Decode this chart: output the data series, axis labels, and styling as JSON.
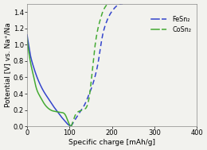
{
  "title": "",
  "xlabel": "Specific charge [mAh/g]",
  "ylabel": "Potential [V] vs. Na⁺/Na",
  "xlim": [
    0,
    400
  ],
  "ylim": [
    0,
    1.5
  ],
  "xticks": [
    0,
    100,
    200,
    300,
    400
  ],
  "yticks": [
    0.0,
    0.2,
    0.4,
    0.6,
    0.8,
    1.0,
    1.2,
    1.4
  ],
  "legend_labels": [
    "FeSn₂",
    "CoSn₂"
  ],
  "FeSn2_color": "#3344cc",
  "CoSn2_color": "#44aa33",
  "background_color": "#f2f2ee",
  "figsize": [
    2.6,
    1.89
  ],
  "dpi": 100,
  "fe_discharge_x": [
    0,
    1,
    3,
    6,
    10,
    15,
    20,
    30,
    40,
    50,
    60,
    70,
    80,
    90,
    95,
    100,
    103
  ],
  "fe_discharge_y": [
    1.12,
    1.08,
    1.02,
    0.92,
    0.82,
    0.73,
    0.65,
    0.52,
    0.42,
    0.34,
    0.26,
    0.19,
    0.12,
    0.06,
    0.03,
    0.01,
    0.0
  ],
  "co_discharge_x": [
    0,
    1,
    3,
    6,
    10,
    15,
    20,
    30,
    40,
    50,
    60,
    70,
    80,
    90,
    100,
    104
  ],
  "co_discharge_y": [
    1.08,
    1.02,
    0.94,
    0.84,
    0.73,
    0.62,
    0.5,
    0.37,
    0.28,
    0.22,
    0.19,
    0.18,
    0.17,
    0.14,
    0.02,
    0.0
  ],
  "fe_charge_x": [
    103,
    108,
    115,
    125,
    135,
    145,
    155,
    162,
    168,
    173,
    178,
    185,
    193,
    200,
    208,
    215,
    220,
    225
  ],
  "fe_charge_y": [
    0.0,
    0.04,
    0.1,
    0.18,
    0.26,
    0.38,
    0.52,
    0.65,
    0.8,
    0.97,
    1.12,
    1.25,
    1.35,
    1.41,
    1.46,
    1.49,
    1.5,
    1.5
  ],
  "co_charge_x": [
    104,
    108,
    112,
    118,
    125,
    130,
    135,
    138,
    142,
    147,
    152,
    158,
    165,
    172,
    178,
    185,
    190,
    195
  ],
  "co_charge_y": [
    0.0,
    0.06,
    0.12,
    0.17,
    0.19,
    0.2,
    0.21,
    0.22,
    0.26,
    0.38,
    0.6,
    0.9,
    1.15,
    1.3,
    1.4,
    1.47,
    1.5,
    1.5
  ]
}
